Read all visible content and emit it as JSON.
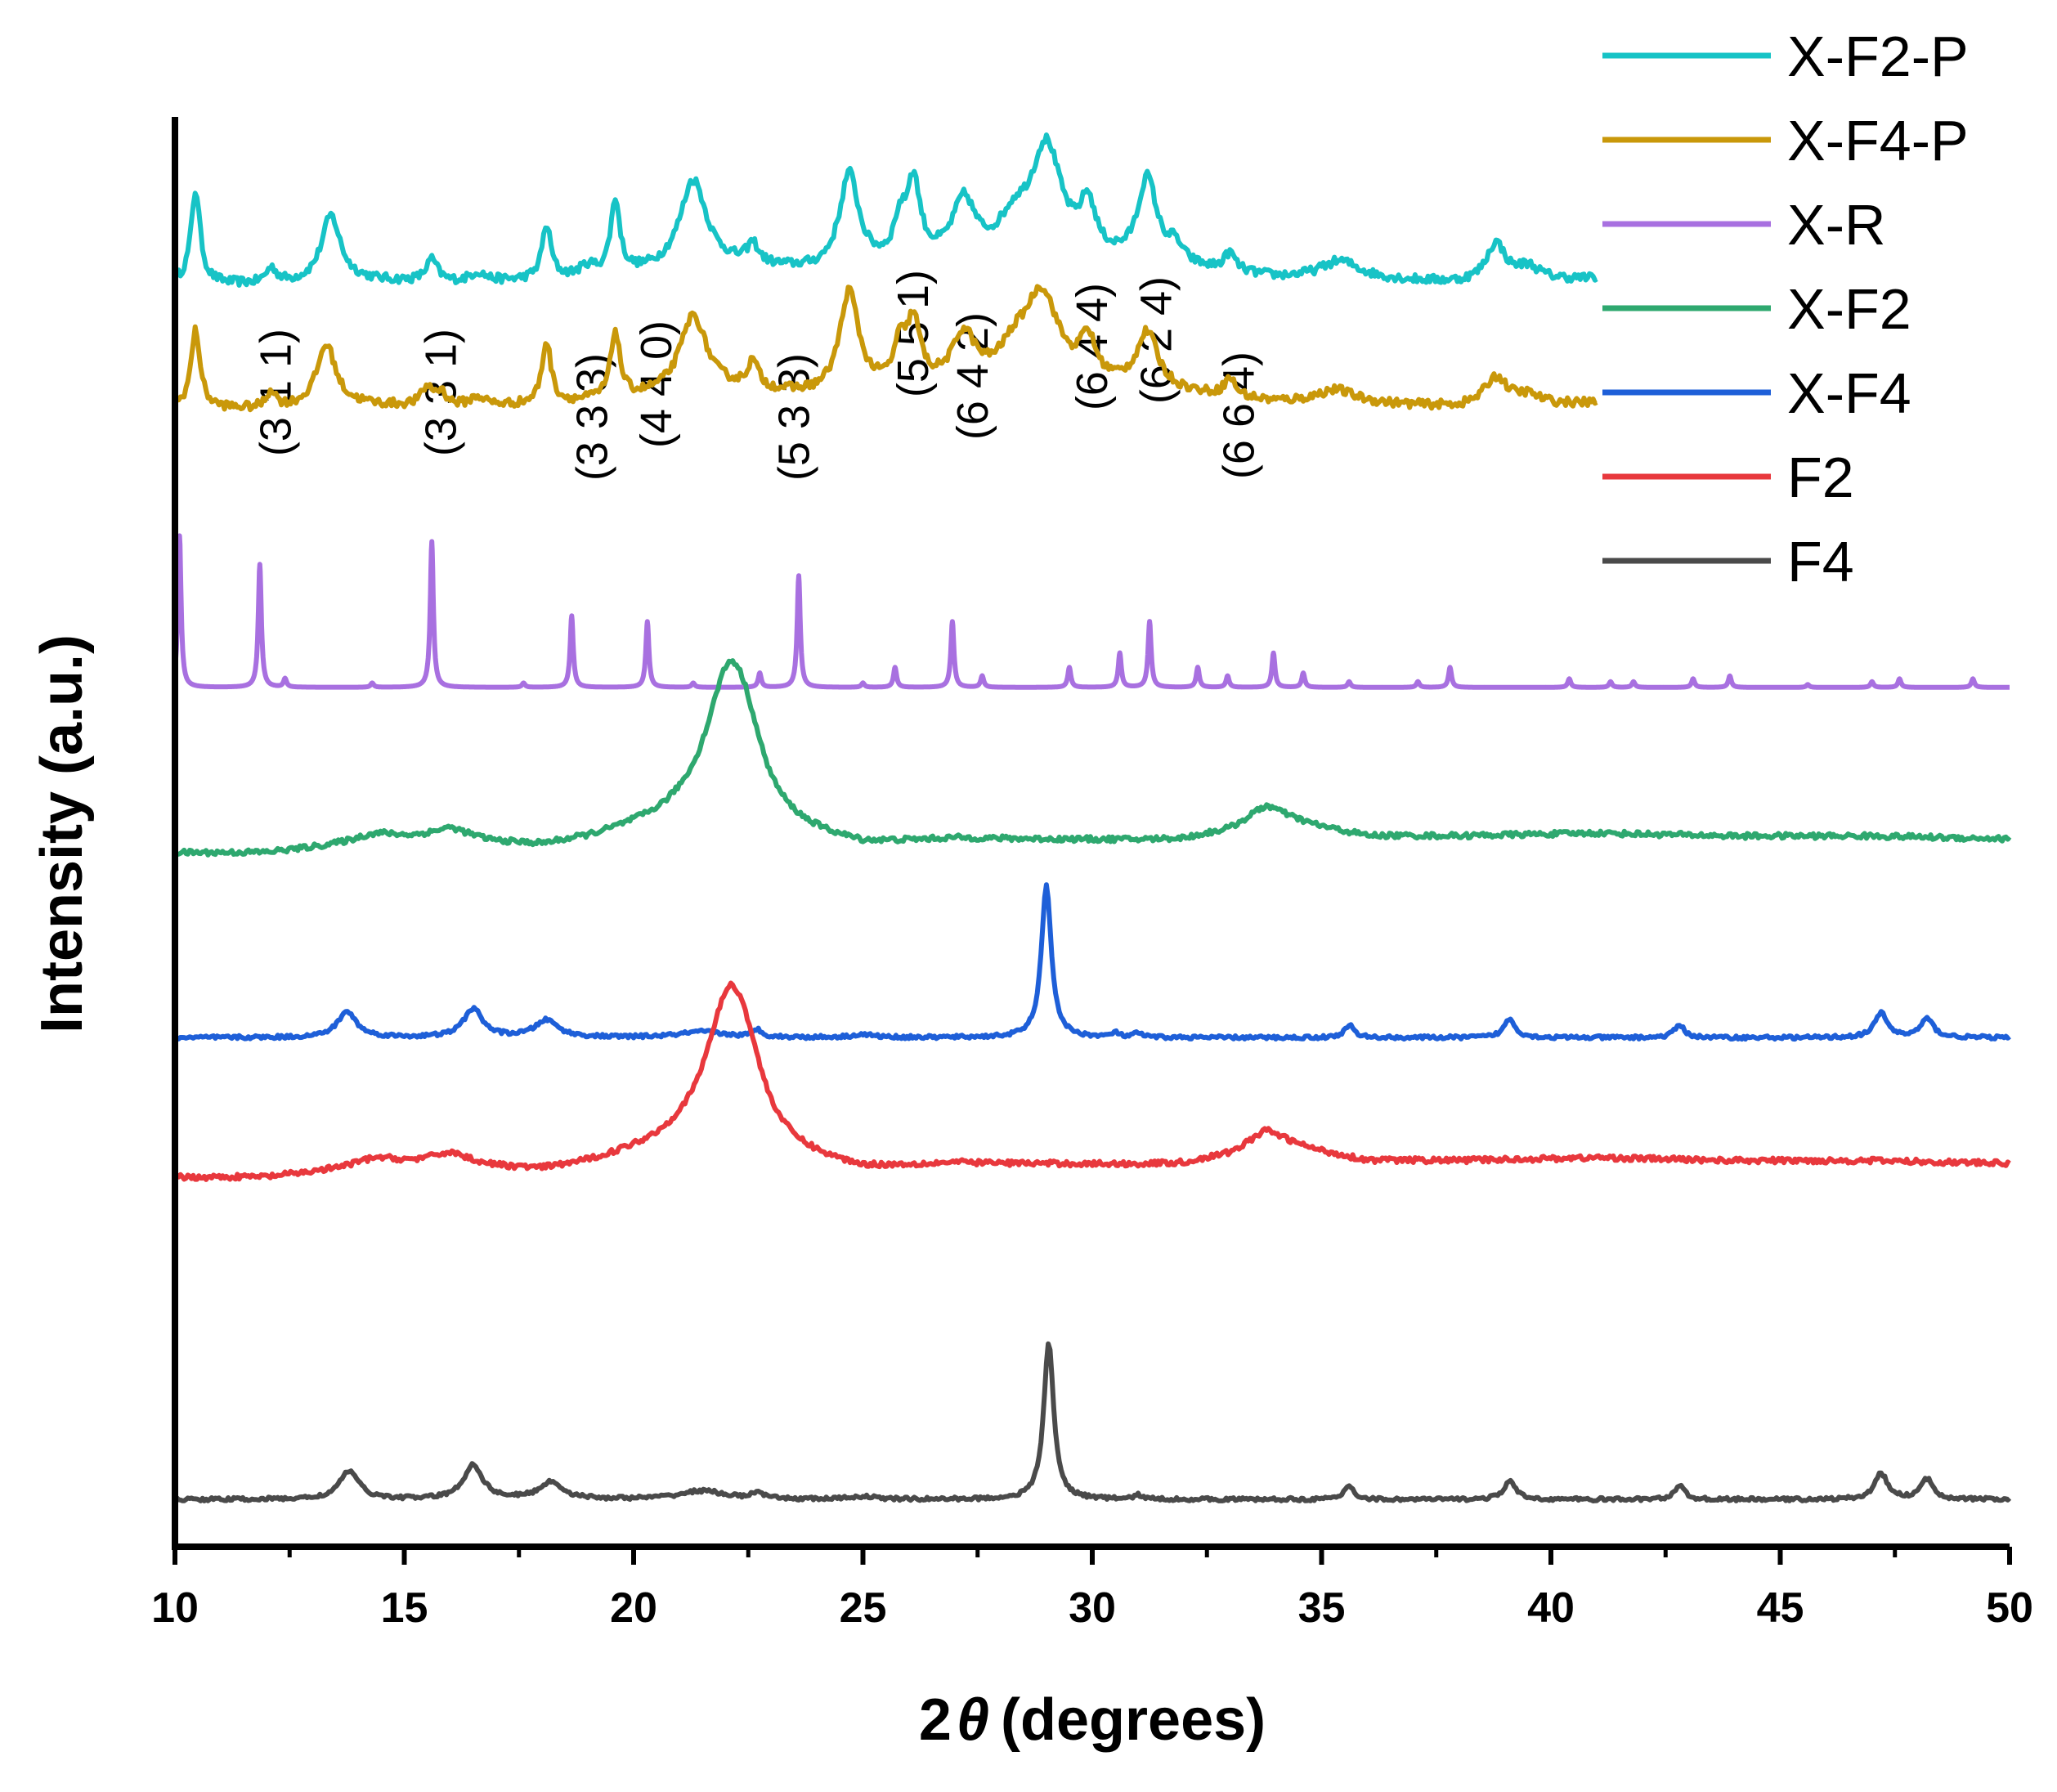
{
  "chart_data": {
    "type": "line",
    "title": "",
    "xlabel_prefix": "2",
    "xlabel_symbol": "θ",
    "xlabel_suffix": "(degrees)",
    "ylabel": "Intensity (a.u.)",
    "xlim": [
      10,
      50
    ],
    "x_ticks": [
      "10",
      "15",
      "20",
      "25",
      "30",
      "35",
      "40",
      "45",
      "50"
    ],
    "y_ticks_shown": false,
    "legend": "top-right",
    "series": [
      {
        "name": "X-F2-P",
        "color": "#17c3c6",
        "x_end": 41,
        "base": 0.882,
        "amp": 0.0155,
        "noise": 0.003,
        "background": [
          [
            10,
            0.1
          ],
          [
            12,
            0.0
          ],
          [
            14,
            0.2
          ],
          [
            16,
            0.1
          ],
          [
            18,
            0.2
          ],
          [
            20,
            0.5
          ],
          [
            22,
            0.8
          ],
          [
            24,
            0.6
          ],
          [
            26,
            0.9
          ],
          [
            28,
            1.0
          ],
          [
            30,
            1.0
          ],
          [
            32,
            0.7
          ],
          [
            34,
            0.3
          ],
          [
            36,
            0.25
          ],
          [
            38,
            0.1
          ],
          [
            41,
            0.3
          ]
        ],
        "peaks": [
          [
            10.45,
            4.2,
            0.12
          ],
          [
            12.1,
            0.7,
            0.15
          ],
          [
            13.4,
            3.0,
            0.25
          ],
          [
            15.6,
            1.0,
            0.15
          ],
          [
            16.6,
            0.4,
            0.2
          ],
          [
            18.1,
            2.4,
            0.12
          ],
          [
            19.0,
            0.4,
            0.2
          ],
          [
            19.6,
            3.3,
            0.12
          ],
          [
            21.3,
            4.0,
            0.35
          ],
          [
            22.6,
            0.9,
            0.15
          ],
          [
            24.7,
            4.2,
            0.25
          ],
          [
            25.8,
            1.5,
            0.15
          ],
          [
            26.1,
            3.5,
            0.18
          ],
          [
            27.2,
            2.6,
            0.3
          ],
          [
            28.3,
            1.5,
            0.4
          ],
          [
            29.0,
            5.0,
            0.4
          ],
          [
            29.9,
            2.2,
            0.2
          ],
          [
            31.2,
            3.8,
            0.25
          ],
          [
            31.8,
            0.8,
            0.2
          ],
          [
            33.0,
            0.8,
            0.15
          ],
          [
            35.4,
            0.8,
            0.5
          ],
          [
            38.8,
            1.7,
            0.25
          ],
          [
            39.5,
            0.6,
            0.3
          ]
        ]
      },
      {
        "name": "X-F4-P",
        "color": "#c9980a",
        "x_end": 41,
        "base": 0.795,
        "amp": 0.0155,
        "noise": 0.003,
        "background": [
          [
            10,
            0.1
          ],
          [
            12,
            0.0
          ],
          [
            14,
            0.2
          ],
          [
            16,
            0.1
          ],
          [
            18,
            0.2
          ],
          [
            20,
            0.5
          ],
          [
            22,
            0.8
          ],
          [
            24,
            0.6
          ],
          [
            26,
            0.9
          ],
          [
            28,
            1.0
          ],
          [
            30,
            1.0
          ],
          [
            32,
            0.7
          ],
          [
            34,
            0.3
          ],
          [
            36,
            0.25
          ],
          [
            38,
            0.1
          ],
          [
            41,
            0.3
          ]
        ],
        "peaks": [
          [
            10.45,
            3.5,
            0.12
          ],
          [
            12.1,
            0.8,
            0.12
          ],
          [
            13.3,
            2.8,
            0.25
          ],
          [
            15.5,
            0.8,
            0.15
          ],
          [
            15.8,
            0.6,
            0.15
          ],
          [
            16.6,
            0.4,
            0.2
          ],
          [
            18.1,
            2.8,
            0.12
          ],
          [
            19.6,
            3.0,
            0.12
          ],
          [
            21.3,
            3.5,
            0.35
          ],
          [
            22.6,
            1.2,
            0.15
          ],
          [
            24.7,
            4.5,
            0.25
          ],
          [
            25.8,
            1.6,
            0.15
          ],
          [
            26.1,
            2.8,
            0.18
          ],
          [
            27.2,
            2.2,
            0.3
          ],
          [
            28.3,
            1.2,
            0.4
          ],
          [
            28.9,
            4.0,
            0.45
          ],
          [
            29.9,
            1.8,
            0.2
          ],
          [
            31.2,
            2.5,
            0.28
          ],
          [
            33.0,
            0.8,
            0.15
          ],
          [
            35.3,
            0.6,
            0.5
          ],
          [
            38.8,
            1.3,
            0.3
          ],
          [
            39.5,
            0.4,
            0.3
          ]
        ]
      },
      {
        "name": "X-R",
        "color": "#a870e0",
        "x_end": 50,
        "base": 0.601,
        "amp": 0.02,
        "noise": 0,
        "background": [
          [
            10,
            0
          ],
          [
            50,
            0
          ]
        ],
        "peaks": [
          [
            10.1,
            5.3,
            0.04
          ],
          [
            11.85,
            4.3,
            0.04
          ],
          [
            12.4,
            0.3,
            0.04
          ],
          [
            14.3,
            0.15,
            0.04
          ],
          [
            15.6,
            5.1,
            0.04
          ],
          [
            17.6,
            0.15,
            0.04
          ],
          [
            18.65,
            2.5,
            0.04
          ],
          [
            20.3,
            2.3,
            0.04
          ],
          [
            21.3,
            0.15,
            0.04
          ],
          [
            22.75,
            0.5,
            0.04
          ],
          [
            23.6,
            3.9,
            0.04
          ],
          [
            25.0,
            0.15,
            0.04
          ],
          [
            25.7,
            0.7,
            0.04
          ],
          [
            26.95,
            2.3,
            0.04
          ],
          [
            27.6,
            0.4,
            0.04
          ],
          [
            29.5,
            0.7,
            0.04
          ],
          [
            30.6,
            1.2,
            0.04
          ],
          [
            31.25,
            2.3,
            0.04
          ],
          [
            32.3,
            0.7,
            0.04
          ],
          [
            32.95,
            0.4,
            0.04
          ],
          [
            33.95,
            1.2,
            0.04
          ],
          [
            34.6,
            0.5,
            0.04
          ],
          [
            35.6,
            0.2,
            0.04
          ],
          [
            37.1,
            0.2,
            0.04
          ],
          [
            37.8,
            0.7,
            0.04
          ],
          [
            40.4,
            0.3,
            0.04
          ],
          [
            41.3,
            0.2,
            0.04
          ],
          [
            41.8,
            0.2,
            0.04
          ],
          [
            43.1,
            0.3,
            0.04
          ],
          [
            43.9,
            0.4,
            0.04
          ],
          [
            45.6,
            0.1,
            0.04
          ],
          [
            47.0,
            0.2,
            0.04
          ],
          [
            47.6,
            0.3,
            0.04
          ],
          [
            49.2,
            0.3,
            0.04
          ]
        ]
      },
      {
        "name": "X-F2",
        "color": "#2ea86f",
        "x_end": 50,
        "base": 0.485,
        "amp": 0.02,
        "noise": 0.0018,
        "background": [
          [
            10,
            0.0
          ],
          [
            12,
            0.0
          ],
          [
            14,
            0.3
          ],
          [
            15,
            0.4
          ],
          [
            16,
            0.5
          ],
          [
            17,
            0.3
          ],
          [
            18,
            0.2
          ],
          [
            19,
            0.4
          ],
          [
            20,
            0.7
          ],
          [
            21,
            0.9
          ],
          [
            25,
            0.2
          ],
          [
            27,
            0.45
          ],
          [
            29,
            0.45
          ],
          [
            31,
            0.45
          ],
          [
            32,
            0.5
          ],
          [
            33,
            0.8
          ],
          [
            33.8,
            1.35
          ],
          [
            35,
            0.9
          ],
          [
            36,
            0.6
          ],
          [
            38,
            0.6
          ],
          [
            41,
            0.7
          ],
          [
            44,
            0.6
          ],
          [
            47,
            0.6
          ],
          [
            50,
            0.5
          ]
        ],
        "peaks": [
          [
            14.4,
            0.3,
            0.6
          ],
          [
            16.0,
            0.3,
            0.5
          ],
          [
            22.1,
            5.6,
            0.65
          ],
          [
            22.5,
            0.8,
            0.4
          ],
          [
            33.8,
            0.3,
            0.5
          ]
        ]
      },
      {
        "name": "X-F4",
        "color": "#1e5fd8",
        "x_end": 50,
        "base": 0.356,
        "amp": 0.02,
        "noise": 0.0012,
        "background": [
          [
            10,
            0
          ],
          [
            50,
            0
          ]
        ],
        "peaks": [
          [
            13.75,
            0.9,
            0.25
          ],
          [
            16.5,
            1.0,
            0.25
          ],
          [
            18.1,
            0.6,
            0.3
          ],
          [
            21.5,
            0.2,
            0.6
          ],
          [
            22.7,
            0.25,
            0.12
          ],
          [
            25.0,
            0.1,
            0.3
          ],
          [
            29.0,
            5.3,
            0.13
          ],
          [
            30.5,
            0.15,
            0.1
          ],
          [
            31.0,
            0.15,
            0.1
          ],
          [
            35.6,
            0.45,
            0.12
          ],
          [
            39.1,
            0.65,
            0.15
          ],
          [
            42.8,
            0.45,
            0.13
          ],
          [
            47.2,
            0.85,
            0.17
          ],
          [
            48.2,
            0.65,
            0.17
          ]
        ]
      },
      {
        "name": "F2",
        "color": "#e8383d",
        "x_end": 50,
        "base": 0.258,
        "amp": 0.02,
        "noise": 0.0018,
        "background": [
          [
            10,
            0.0
          ],
          [
            12,
            0.0
          ],
          [
            14,
            0.3
          ],
          [
            15,
            0.4
          ],
          [
            16,
            0.5
          ],
          [
            17,
            0.3
          ],
          [
            18,
            0.2
          ],
          [
            19,
            0.4
          ],
          [
            20,
            0.7
          ],
          [
            21,
            0.9
          ],
          [
            25,
            0.2
          ],
          [
            27,
            0.45
          ],
          [
            29,
            0.45
          ],
          [
            31,
            0.45
          ],
          [
            32,
            0.5
          ],
          [
            33,
            0.8
          ],
          [
            33.8,
            1.35
          ],
          [
            35,
            0.9
          ],
          [
            36,
            0.6
          ],
          [
            38,
            0.6
          ],
          [
            41,
            0.7
          ],
          [
            44,
            0.6
          ],
          [
            47,
            0.6
          ],
          [
            50,
            0.5
          ]
        ],
        "peaks": [
          [
            14.4,
            0.3,
            0.6
          ],
          [
            16.0,
            0.3,
            0.5
          ],
          [
            22.1,
            5.6,
            0.65
          ],
          [
            22.5,
            0.8,
            0.4
          ],
          [
            33.8,
            0.3,
            0.5
          ]
        ]
      },
      {
        "name": "F4",
        "color": "#4a4a4a",
        "x_end": 50,
        "base": 0.033,
        "amp": 0.02,
        "noise": 0.0012,
        "background": [
          [
            10,
            0
          ],
          [
            50,
            0
          ]
        ],
        "peaks": [
          [
            13.8,
            1.0,
            0.25
          ],
          [
            16.5,
            1.2,
            0.25
          ],
          [
            18.2,
            0.6,
            0.3
          ],
          [
            21.5,
            0.3,
            0.6
          ],
          [
            22.7,
            0.25,
            0.12
          ],
          [
            25.0,
            0.1,
            0.3
          ],
          [
            29.05,
            5.5,
            0.13
          ],
          [
            31.0,
            0.15,
            0.1
          ],
          [
            35.6,
            0.5,
            0.12
          ],
          [
            39.1,
            0.65,
            0.15
          ],
          [
            42.8,
            0.5,
            0.13
          ],
          [
            47.2,
            0.9,
            0.17
          ],
          [
            48.2,
            0.7,
            0.17
          ]
        ]
      }
    ],
    "annotations": [
      {
        "text": "(3 1 1)",
        "x": 12.2
      },
      {
        "text": "(3 3 1)",
        "x": 15.8
      },
      {
        "text": "(3 3 3)",
        "x": 19.1
      },
      {
        "text": "(4 4 0)",
        "x": 20.5
      },
      {
        "text": "(5 3 3)",
        "x": 23.5
      },
      {
        "text": "(5 5 1)",
        "x": 26.1
      },
      {
        "text": "(6 4 2)",
        "x": 27.4
      },
      {
        "text": "(6 4 4)",
        "x": 30.0
      },
      {
        "text": "(6 2 4)",
        "x": 31.4
      },
      {
        "text": "(6 6 4)",
        "x": 33.2
      }
    ]
  }
}
